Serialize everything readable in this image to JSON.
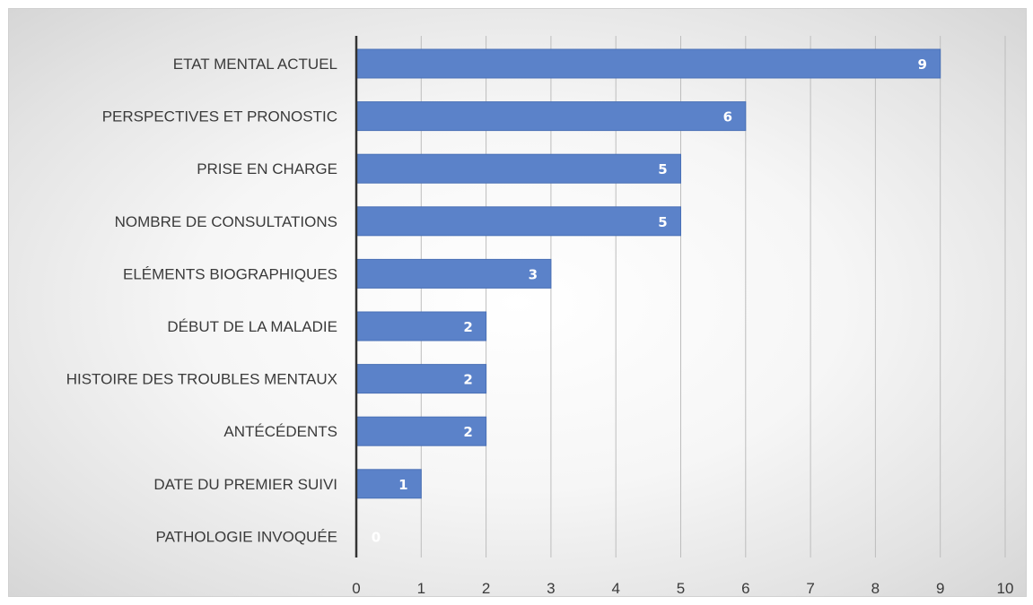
{
  "chart_data": {
    "type": "bar",
    "orientation": "horizontal",
    "title": "",
    "xlabel": "",
    "ylabel": "",
    "categories": [
      "ETAT MENTAL ACTUEL",
      "PERSPECTIVES ET PRONOSTIC",
      "PRISE EN CHARGE",
      "NOMBRE DE CONSULTATIONS",
      "ELÉMENTS BIOGRAPHIQUES",
      "DÉBUT DE LA MALADIE",
      "HISTOIRE DES TROUBLES MENTAUX",
      "ANTÉCÉDENTS",
      "DATE DU PREMIER SUIVI",
      "PATHOLOGIE INVOQUÉE"
    ],
    "values": [
      9,
      6,
      5,
      5,
      3,
      2,
      2,
      2,
      1,
      0
    ],
    "xlim": [
      0,
      10
    ],
    "xticks": [
      "0",
      "1",
      "2",
      "3",
      "4",
      "5",
      "6",
      "7",
      "8",
      "9",
      "10"
    ],
    "grid": "vertical",
    "data_labels": true,
    "colors": {
      "bar": "#5b82c9",
      "bar_border": "#4a70b6",
      "grid": "#bdbdbd",
      "axis": "#333333"
    }
  }
}
